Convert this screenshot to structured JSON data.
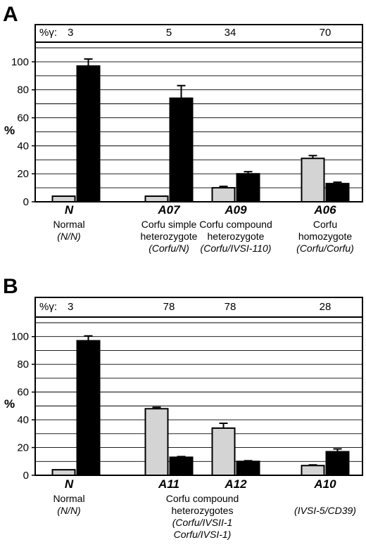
{
  "chart_data": [
    {
      "type": "bar",
      "panel_label": "A",
      "ylabel": "%",
      "ylim": [
        0,
        110
      ],
      "yticks": [
        0,
        20,
        40,
        60,
        80,
        100
      ],
      "grid": true,
      "gamma_prefix": "%γ:",
      "gamma_values": [
        "3",
        "5",
        "34",
        "70"
      ],
      "groups": [
        {
          "code": "N",
          "lines": [
            "Normal",
            "(N/N)"
          ],
          "italic": [
            false,
            true
          ]
        },
        {
          "code": "A07",
          "lines": [
            "Corfu simple",
            "heterozygote",
            "(Corfu/N)"
          ],
          "italic": [
            false,
            false,
            true
          ]
        },
        {
          "code": "A09",
          "lines": [
            "Corfu compound",
            "heterozygote",
            "(Corfu/IVSI-110)"
          ],
          "italic": [
            false,
            false,
            true
          ]
        },
        {
          "code": "A06",
          "lines": [
            "Corfu",
            "homozygote",
            "(Corfu/Corfu)"
          ],
          "italic": [
            false,
            false,
            true
          ]
        }
      ],
      "series": [
        {
          "color": "#d4d4d4",
          "values": [
            4,
            4,
            10,
            31
          ],
          "errors": [
            0,
            0,
            1,
            2
          ]
        },
        {
          "color": "#000000",
          "values": [
            97,
            74,
            20,
            13
          ],
          "errors": [
            5,
            9,
            1.5,
            1
          ]
        }
      ]
    },
    {
      "type": "bar",
      "panel_label": "B",
      "ylabel": "%",
      "ylim": [
        0,
        110
      ],
      "yticks": [
        0,
        20,
        40,
        60,
        80,
        100
      ],
      "grid": true,
      "gamma_prefix": "%γ:",
      "gamma_values": [
        "3",
        "78",
        "78",
        "28"
      ],
      "groups": [
        {
          "code": "N",
          "lines": [
            "Normal",
            "(N/N)"
          ],
          "italic": [
            false,
            true
          ]
        },
        {
          "code": "A11",
          "lines": [],
          "italic": []
        },
        {
          "code": "A12",
          "lines": [],
          "italic": []
        },
        {
          "code": "A10",
          "lines": [
            "",
            "(IVSI-5/CD39)"
          ],
          "italic": [
            false,
            true
          ]
        }
      ],
      "shared_label": {
        "lines": [
          "Corfu compound",
          "heterozygotes",
          "(Corfu/IVSII-1",
          "Corfu/IVSI-1)"
        ],
        "italic": [
          false,
          false,
          true,
          true
        ]
      },
      "series": [
        {
          "color": "#d4d4d4",
          "values": [
            4,
            48,
            34,
            7
          ],
          "errors": [
            0,
            1,
            3.5,
            0.5
          ]
        },
        {
          "color": "#000000",
          "values": [
            97,
            13,
            10,
            17
          ],
          "errors": [
            3.5,
            0.5,
            0.5,
            2
          ]
        }
      ]
    }
  ]
}
